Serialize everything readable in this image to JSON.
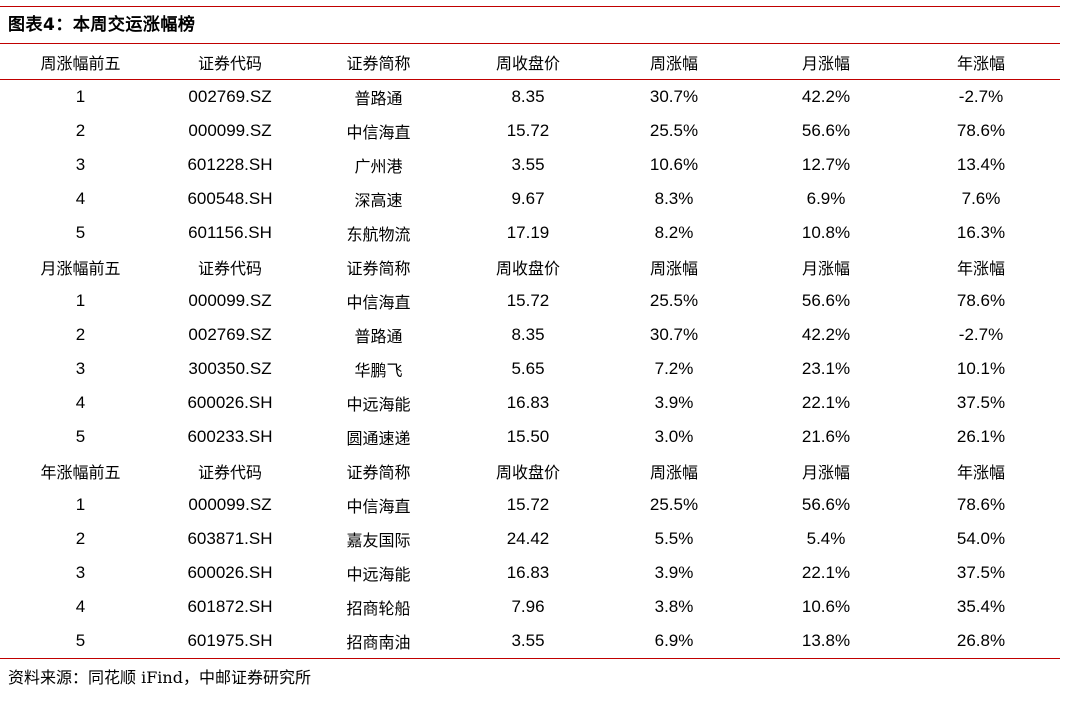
{
  "title": "图表4：本周交运涨幅榜",
  "columns": [
    "周涨幅前五",
    "证券代码",
    "证券简称",
    "周收盘价",
    "周涨幅",
    "月涨幅",
    "年涨幅"
  ],
  "sections": [
    {
      "header": [
        "周涨幅前五",
        "证券代码",
        "证券简称",
        "周收盘价",
        "周涨幅",
        "月涨幅",
        "年涨幅"
      ],
      "rows": [
        [
          "1",
          "002769.SZ",
          "普路通",
          "8.35",
          "30.7%",
          "42.2%",
          "-2.7%"
        ],
        [
          "2",
          "000099.SZ",
          "中信海直",
          "15.72",
          "25.5%",
          "56.6%",
          "78.6%"
        ],
        [
          "3",
          "601228.SH",
          "广州港",
          "3.55",
          "10.6%",
          "12.7%",
          "13.4%"
        ],
        [
          "4",
          "600548.SH",
          "深高速",
          "9.67",
          "8.3%",
          "6.9%",
          "7.6%"
        ],
        [
          "5",
          "601156.SH",
          "东航物流",
          "17.19",
          "8.2%",
          "10.8%",
          "16.3%"
        ]
      ]
    },
    {
      "header": [
        "月涨幅前五",
        "证券代码",
        "证券简称",
        "周收盘价",
        "周涨幅",
        "月涨幅",
        "年涨幅"
      ],
      "rows": [
        [
          "1",
          "000099.SZ",
          "中信海直",
          "15.72",
          "25.5%",
          "56.6%",
          "78.6%"
        ],
        [
          "2",
          "002769.SZ",
          "普路通",
          "8.35",
          "30.7%",
          "42.2%",
          "-2.7%"
        ],
        [
          "3",
          "300350.SZ",
          "华鹏飞",
          "5.65",
          "7.2%",
          "23.1%",
          "10.1%"
        ],
        [
          "4",
          "600026.SH",
          "中远海能",
          "16.83",
          "3.9%",
          "22.1%",
          "37.5%"
        ],
        [
          "5",
          "600233.SH",
          "圆通速递",
          "15.50",
          "3.0%",
          "21.6%",
          "26.1%"
        ]
      ]
    },
    {
      "header": [
        "年涨幅前五",
        "证券代码",
        "证券简称",
        "周收盘价",
        "周涨幅",
        "月涨幅",
        "年涨幅"
      ],
      "rows": [
        [
          "1",
          "000099.SZ",
          "中信海直",
          "15.72",
          "25.5%",
          "56.6%",
          "78.6%"
        ],
        [
          "2",
          "603871.SH",
          "嘉友国际",
          "24.42",
          "5.5%",
          "5.4%",
          "54.0%"
        ],
        [
          "3",
          "600026.SH",
          "中远海能",
          "16.83",
          "3.9%",
          "22.1%",
          "37.5%"
        ],
        [
          "4",
          "601872.SH",
          "招商轮船",
          "7.96",
          "3.8%",
          "10.6%",
          "35.4%"
        ],
        [
          "5",
          "601975.SH",
          "招商南油",
          "3.55",
          "6.9%",
          "13.8%",
          "26.8%"
        ]
      ]
    }
  ],
  "source": "资料来源：同花顺 iFind，中邮证券研究所",
  "rule_color": "#c00000"
}
